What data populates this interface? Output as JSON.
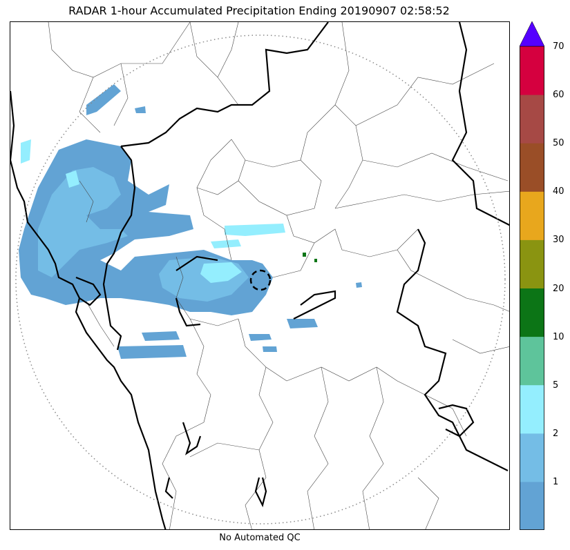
{
  "title": "RADAR 1-hour Accumulated Precipitation Ending 20190907 02:58:52",
  "footer_note": "No Automated QC",
  "colorbar": {
    "bins": [
      {
        "upper": "1",
        "color": "#62a3d4"
      },
      {
        "upper": "2",
        "color": "#74bde6"
      },
      {
        "upper": "5",
        "color": "#94eefe"
      },
      {
        "upper": "10",
        "color": "#5ec49b"
      },
      {
        "upper": "20",
        "color": "#0c7516"
      },
      {
        "upper": "30",
        "color": "#8a9411"
      },
      {
        "upper": "40",
        "color": "#e8a71d"
      },
      {
        "upper": "50",
        "color": "#9a4e27"
      },
      {
        "upper": "60",
        "color": "#a64945"
      },
      {
        "upper": "70",
        "color": "#d5003f"
      }
    ],
    "extend_color": "#5500ff",
    "tick_labels": [
      "1",
      "2",
      "5",
      "10",
      "20",
      "30",
      "40",
      "50",
      "60",
      "70"
    ]
  }
}
